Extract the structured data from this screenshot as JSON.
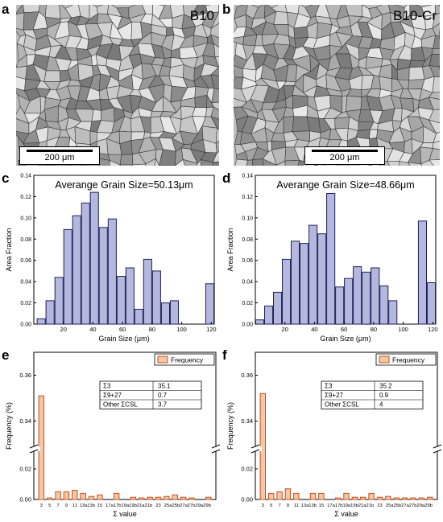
{
  "micrographs": [
    {
      "letter": "a",
      "label": "B10",
      "scale": "200 μm"
    },
    {
      "letter": "b",
      "label": "B10-Cr",
      "scale": "200 μm"
    }
  ],
  "colors": {
    "bar_blue": "#b4b8dd",
    "bar_blue_edge": "#1e1f5c",
    "bar_orange": "#f6c7a6",
    "bar_orange_edge": "#c4511c"
  },
  "chart_data": [
    {
      "letter": "c",
      "type": "bar",
      "title": "Averange Grain Size=50.13μm",
      "xlabel": "Grain Size (μm)",
      "ylabel": "Area Fraction",
      "xlim": [
        0,
        122
      ],
      "ylim": [
        0,
        0.14
      ],
      "xticks": [
        20,
        40,
        60,
        80,
        100,
        120
      ],
      "yticks": [
        0.0,
        0.02,
        0.04,
        0.06,
        0.08,
        0.1,
        0.12,
        0.14
      ],
      "x": [
        5,
        11,
        17,
        23,
        29,
        35,
        41,
        47,
        53,
        59,
        65,
        71,
        77,
        83,
        89,
        95,
        119
      ],
      "values": [
        0.005,
        0.022,
        0.044,
        0.089,
        0.102,
        0.114,
        0.124,
        0.091,
        0.099,
        0.045,
        0.053,
        0.014,
        0.061,
        0.05,
        0.02,
        0.022,
        0.038
      ]
    },
    {
      "letter": "d",
      "type": "bar",
      "title": "Averange Grain Size=48.66μm",
      "xlabel": "Grain Size (μm)",
      "ylabel": "Area Fraction",
      "xlim": [
        0,
        122
      ],
      "ylim": [
        0,
        0.14
      ],
      "xticks": [
        20,
        40,
        60,
        80,
        100,
        120
      ],
      "yticks": [
        0.0,
        0.02,
        0.04,
        0.06,
        0.08,
        0.1,
        0.12,
        0.14
      ],
      "x": [
        3,
        9,
        15,
        21,
        27,
        33,
        39,
        45,
        51,
        57,
        63,
        69,
        75,
        81,
        87,
        93,
        113,
        119
      ],
      "values": [
        0.004,
        0.017,
        0.03,
        0.061,
        0.078,
        0.076,
        0.093,
        0.085,
        0.123,
        0.035,
        0.043,
        0.054,
        0.049,
        0.053,
        0.036,
        0.022,
        0.097,
        0.039
      ]
    },
    {
      "letter": "e",
      "type": "bar",
      "legend": "Frequency",
      "xlabel": "Σ value",
      "ylabel": "Frequency (%)",
      "categories": [
        "3",
        "5",
        "7",
        "9",
        "11",
        "13a",
        "13b",
        "15",
        "17a",
        "17b",
        "19a",
        "19b",
        "21a",
        "21b",
        "23",
        "25a",
        "25b",
        "27a",
        "27b",
        "29a",
        "29b"
      ],
      "tick_labels": [
        "3",
        "5",
        "7",
        "9",
        "11",
        "13a13b",
        "15",
        "17a17b19a19b21a21b",
        "23",
        "25a25b27a27b29a29b"
      ],
      "values": [
        0.351,
        0.001,
        0.005,
        0.005,
        0.006,
        0.004,
        0.002,
        0.003,
        0.0,
        0.004,
        0.0,
        0.0015,
        0.001,
        0.0015,
        0.0015,
        0.002,
        0.003,
        0.0015,
        0.001,
        0.0,
        0.0015
      ],
      "upper_yticks": [
        0.34,
        0.36
      ],
      "lower_yticks": [
        0.0,
        0.02
      ],
      "table": [
        {
          "label": "Σ3",
          "value": "35.1"
        },
        {
          "label": "Σ9+27",
          "value": "0.7"
        },
        {
          "label": "Other ΣCSL",
          "value": "3.7"
        }
      ]
    },
    {
      "letter": "f",
      "type": "bar",
      "legend": "Frequency",
      "xlabel": "Σ value",
      "ylabel": "Frequency (%)",
      "categories": [
        "3",
        "5",
        "7",
        "9",
        "11",
        "13a",
        "13b",
        "15",
        "17a",
        "17b",
        "19a",
        "19b",
        "21a",
        "21b",
        "23",
        "25a",
        "25b",
        "27a",
        "27b",
        "29a",
        "29b"
      ],
      "tick_labels": [
        "3",
        "5",
        "7",
        "9",
        "11",
        "13a13b",
        "15",
        "17a17b19a19b21a21b",
        "23",
        "25a25b27a27b29a29b"
      ],
      "values": [
        0.352,
        0.004,
        0.005,
        0.007,
        0.004,
        0.0,
        0.004,
        0.004,
        0.0,
        0.001,
        0.004,
        0.0015,
        0.0015,
        0.004,
        0.0015,
        0.002,
        0.001,
        0.001,
        0.001,
        0.001,
        0.0015
      ],
      "upper_yticks": [
        0.34,
        0.36
      ],
      "lower_yticks": [
        0.0,
        0.02
      ],
      "table": [
        {
          "label": "Σ3",
          "value": "35.2"
        },
        {
          "label": "Σ9+27",
          "value": "0.9"
        },
        {
          "label": "Other ΣCSL",
          "value": "4"
        }
      ]
    }
  ]
}
